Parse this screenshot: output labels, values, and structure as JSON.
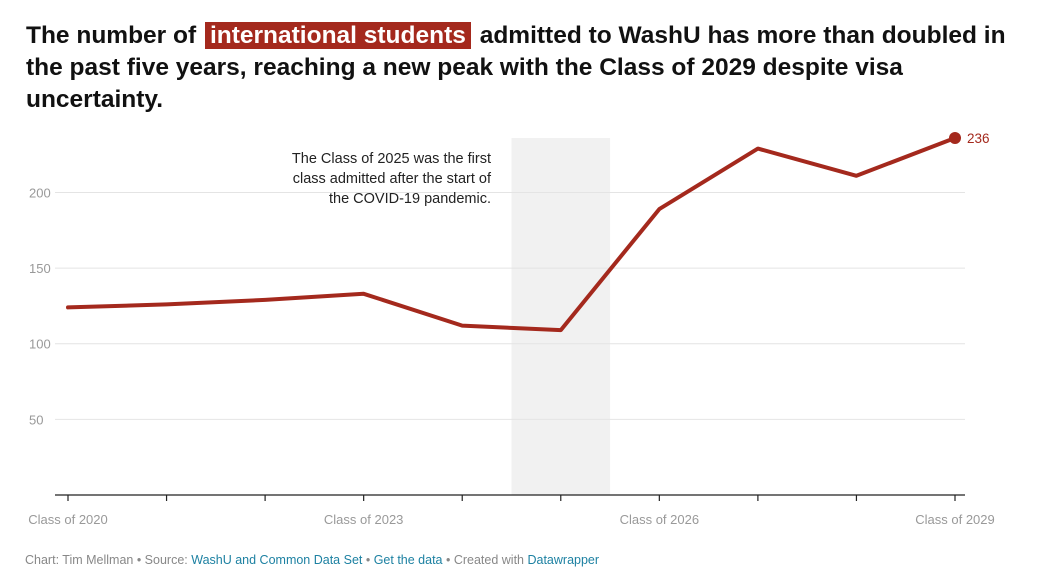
{
  "title": {
    "before": "The number of",
    "highlight": "international students",
    "after": "admitted to WashU has more than doubled in the past five years, reaching a new peak with the Class of 2029 despite visa uncertainty."
  },
  "annotation": {
    "lines": [
      "The Class of 2025 was the first",
      "class admitted after the start of",
      "the COVID-19 pandemic."
    ]
  },
  "colors": {
    "line": "#a4291d",
    "highlight_bg": "#a4291d",
    "shaded_region": "#f1f1f1",
    "grid": "#e4e4e4",
    "axis": "#222222",
    "tick_label": "#999999",
    "link": "#1d81a2"
  },
  "chart_data": {
    "type": "line",
    "x": [
      2020,
      2021,
      2022,
      2023,
      2024,
      2025,
      2026,
      2027,
      2028,
      2029
    ],
    "series": [
      {
        "values": [
          124,
          126,
          129,
          133,
          112,
          109,
          189,
          229,
          211,
          236
        ]
      }
    ],
    "x_tick_labels": [
      {
        "x": 2020,
        "label": "Class of 2020"
      },
      {
        "x": 2023,
        "label": "Class of 2023"
      },
      {
        "x": 2026,
        "label": "Class of 2026"
      },
      {
        "x": 2029,
        "label": "Class of 2029"
      }
    ],
    "y_ticks": [
      50,
      100,
      150,
      200
    ],
    "ylim": [
      0,
      236
    ],
    "shaded_x_range": [
      2024.5,
      2025.5
    ],
    "end_label": "236",
    "grid": true,
    "xlabel": "",
    "ylabel": ""
  },
  "footer": {
    "prefix": "Chart: Tim Mellman • Source: ",
    "source_link": "WashU and Common Data Set",
    "sep1": " • ",
    "get_data": "Get the data",
    "sep2": " • Created with ",
    "tool": "Datawrapper"
  }
}
